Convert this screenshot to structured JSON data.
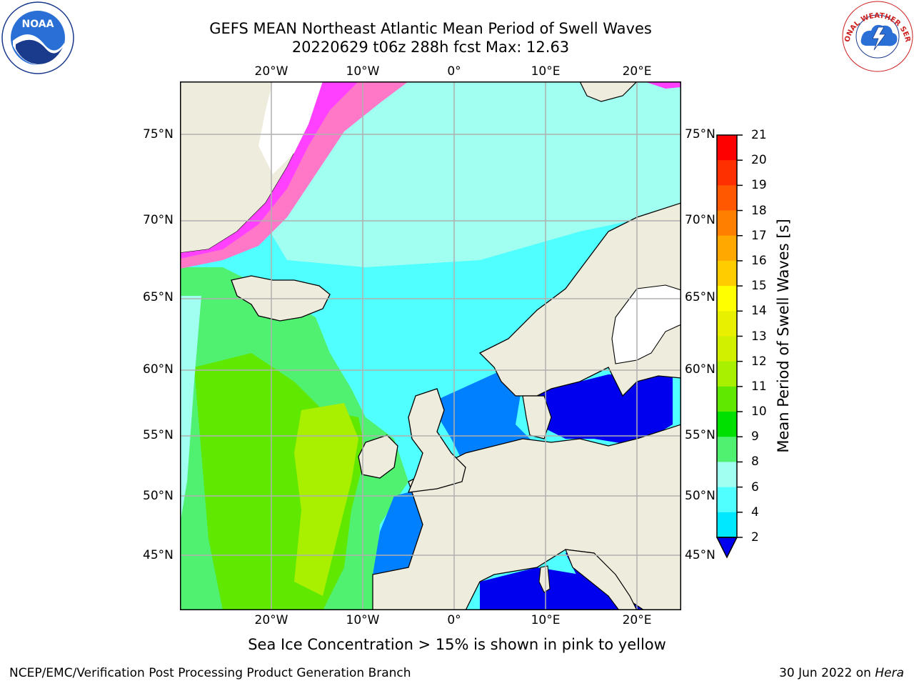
{
  "header": {
    "title_line1": "GEFS MEAN Northeast Atlantic Mean Period of Swell Waves",
    "title_line2": "20220629 t06z 288h fcst   Max: 12.63"
  },
  "logos": {
    "left": {
      "icon": "noaa-logo-icon",
      "text": "NOAA"
    },
    "right": {
      "icon": "nws-logo-icon",
      "text": "NATIONAL WEATHER SERVICE"
    }
  },
  "map": {
    "longitude_ticks": [
      "20°W",
      "10°W",
      "0°",
      "10°E",
      "20°E"
    ],
    "latitude_ticks": [
      "75°N",
      "70°N",
      "65°N",
      "60°N",
      "55°N",
      "50°N",
      "45°N"
    ],
    "land_color": "#eeecdc",
    "grid_color": "#b0b0b0"
  },
  "colorbar": {
    "title": "Mean Period of Swell Waves [s]",
    "labels": [
      "21",
      "20",
      "19",
      "18",
      "17",
      "16",
      "15",
      "14",
      "13",
      "12",
      "11",
      "10",
      "9",
      "8",
      "6",
      "4",
      "2"
    ],
    "colors": [
      "#ff0000",
      "#ff3000",
      "#ff5800",
      "#ff8000",
      "#ffa800",
      "#ffcc00",
      "#ffff00",
      "#e8f000",
      "#d0f000",
      "#a8f000",
      "#60e800",
      "#00e000",
      "#50f070",
      "#a0fff0",
      "#50ffff",
      "#00e8ff",
      "#0080ff",
      "#0000ee"
    ]
  },
  "note": "Sea Ice Concentration > 15% is shown in pink to yellow",
  "footer": {
    "left": "NCEP/EMC/Verification Post Processing Product Generation Branch",
    "right_date": "30 Jun 2022 on ",
    "right_host": "Hera"
  }
}
